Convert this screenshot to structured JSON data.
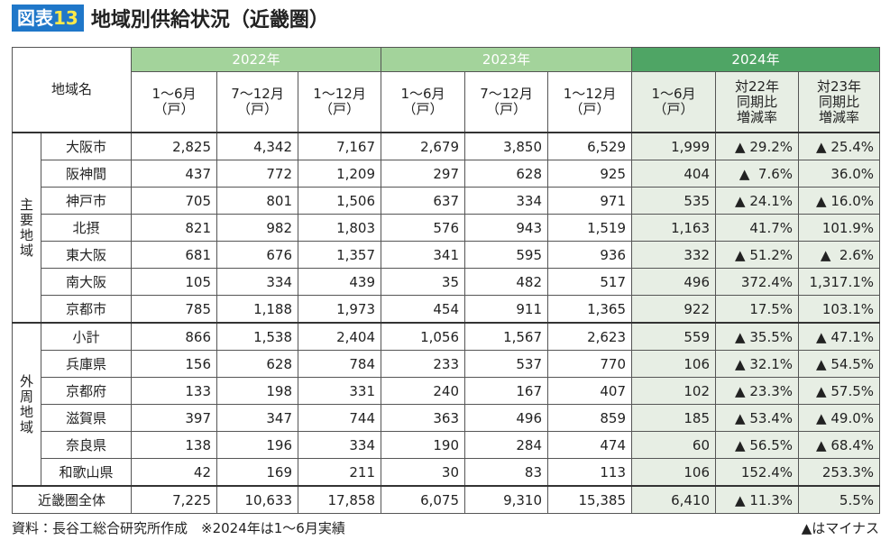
{
  "header": {
    "badge": {
      "prefix": "図表",
      "number": "13"
    },
    "title": "地域別供給状況（近畿圏）"
  },
  "table": {
    "region_header": "地域名",
    "years": [
      {
        "label": "2022年",
        "columns": [
          [
            "1～6月",
            "（戸）"
          ],
          [
            "7～12月",
            "（戸）"
          ],
          [
            "1～12月",
            "（戸）"
          ]
        ]
      },
      {
        "label": "2023年",
        "columns": [
          [
            "1～6月",
            "（戸）"
          ],
          [
            "7～12月",
            "（戸）"
          ],
          [
            "1～12月",
            "（戸）"
          ]
        ]
      },
      {
        "label": "2024年",
        "columns": [
          [
            "1～6月",
            "（戸）"
          ],
          [
            "対22年",
            "同期比",
            "増減率"
          ],
          [
            "対23年",
            "同期比",
            "増減率"
          ]
        ]
      }
    ],
    "groups": [
      {
        "label": "主要地域",
        "rows": [
          {
            "name": "大阪市",
            "cells": [
              "2,825",
              "4,342",
              "7,167",
              "2,679",
              "3,850",
              "6,529",
              "1,999",
              "▲ 29.2%",
              "▲ 25.4%"
            ]
          },
          {
            "name": "阪神間",
            "cells": [
              "437",
              "772",
              "1,209",
              "297",
              "628",
              "925",
              "404",
              "▲  7.6%",
              "36.0%"
            ]
          },
          {
            "name": "神戸市",
            "cells": [
              "705",
              "801",
              "1,506",
              "637",
              "334",
              "971",
              "535",
              "▲ 24.1%",
              "▲ 16.0%"
            ]
          },
          {
            "name": "北摂",
            "cells": [
              "821",
              "982",
              "1,803",
              "576",
              "943",
              "1,519",
              "1,163",
              "41.7%",
              "101.9%"
            ]
          },
          {
            "name": "東大阪",
            "cells": [
              "681",
              "676",
              "1,357",
              "341",
              "595",
              "936",
              "332",
              "▲ 51.2%",
              "▲  2.6%"
            ]
          },
          {
            "name": "南大阪",
            "cells": [
              "105",
              "334",
              "439",
              "35",
              "482",
              "517",
              "496",
              "372.4%",
              "1,317.1%"
            ]
          },
          {
            "name": "京都市",
            "cells": [
              "785",
              "1,188",
              "1,973",
              "454",
              "911",
              "1,365",
              "922",
              "17.5%",
              "103.1%"
            ]
          }
        ]
      },
      {
        "label": "外周地域",
        "rows": [
          {
            "name": "小計",
            "cells": [
              "866",
              "1,538",
              "2,404",
              "1,056",
              "1,567",
              "2,623",
              "559",
              "▲ 35.5%",
              "▲ 47.1%"
            ]
          },
          {
            "name": "兵庫県",
            "cells": [
              "156",
              "628",
              "784",
              "233",
              "537",
              "770",
              "106",
              "▲ 32.1%",
              "▲ 54.5%"
            ]
          },
          {
            "name": "京都府",
            "cells": [
              "133",
              "198",
              "331",
              "240",
              "167",
              "407",
              "102",
              "▲ 23.3%",
              "▲ 57.5%"
            ]
          },
          {
            "name": "滋賀県",
            "cells": [
              "397",
              "347",
              "744",
              "363",
              "496",
              "859",
              "185",
              "▲ 53.4%",
              "▲ 49.0%"
            ]
          },
          {
            "name": "奈良県",
            "cells": [
              "138",
              "196",
              "334",
              "190",
              "284",
              "474",
              "60",
              "▲ 56.5%",
              "▲ 68.4%"
            ]
          },
          {
            "name": "和歌山県",
            "cells": [
              "42",
              "169",
              "211",
              "30",
              "83",
              "113",
              "106",
              "152.4%",
              "253.3%"
            ]
          }
        ]
      }
    ],
    "total": {
      "name": "近畿圏全体",
      "cells": [
        "7,225",
        "10,633",
        "17,858",
        "6,075",
        "9,310",
        "15,385",
        "6,410",
        "▲ 11.3%",
        "5.5%"
      ]
    }
  },
  "footer": {
    "source": "資料：長谷工総合研究所作成　※2024年は1～6月実績",
    "note": "▲はマイナス"
  }
}
